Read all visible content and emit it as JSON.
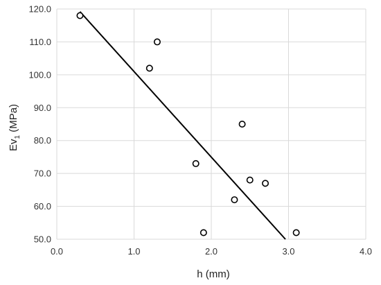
{
  "chart_data": {
    "type": "scatter",
    "title": "",
    "xlabel": "h (mm)",
    "ylabel": {
      "main": "Ev",
      "subscript": "1",
      "unit": " (MPa)"
    },
    "xlim": [
      0.0,
      4.0
    ],
    "ylim": [
      50.0,
      120.0
    ],
    "x_ticks": [
      0.0,
      1.0,
      2.0,
      3.0,
      4.0
    ],
    "y_ticks": [
      50.0,
      60.0,
      70.0,
      80.0,
      90.0,
      100.0,
      110.0,
      120.0
    ],
    "x_tick_labels": [
      "0.0",
      "1.0",
      "2.0",
      "3.0",
      "4.0"
    ],
    "y_tick_labels": [
      "50.0",
      "60.0",
      "70.0",
      "80.0",
      "90.0",
      "100.0",
      "110.0",
      "120.0"
    ],
    "grid": true,
    "legend": "none",
    "points": [
      {
        "x": 0.3,
        "y": 118
      },
      {
        "x": 1.2,
        "y": 102
      },
      {
        "x": 1.3,
        "y": 110
      },
      {
        "x": 1.8,
        "y": 73
      },
      {
        "x": 1.9,
        "y": 52
      },
      {
        "x": 2.3,
        "y": 62
      },
      {
        "x": 2.4,
        "y": 85
      },
      {
        "x": 2.5,
        "y": 68
      },
      {
        "x": 2.7,
        "y": 67
      },
      {
        "x": 3.1,
        "y": 52
      }
    ],
    "trendline": {
      "x1": 0.3,
      "y1": 119.2,
      "x2": 2.96,
      "y2": 50.0
    },
    "colors": {
      "grid": "#d9d9d9",
      "marker": "#000000",
      "trendline": "#000000"
    }
  }
}
